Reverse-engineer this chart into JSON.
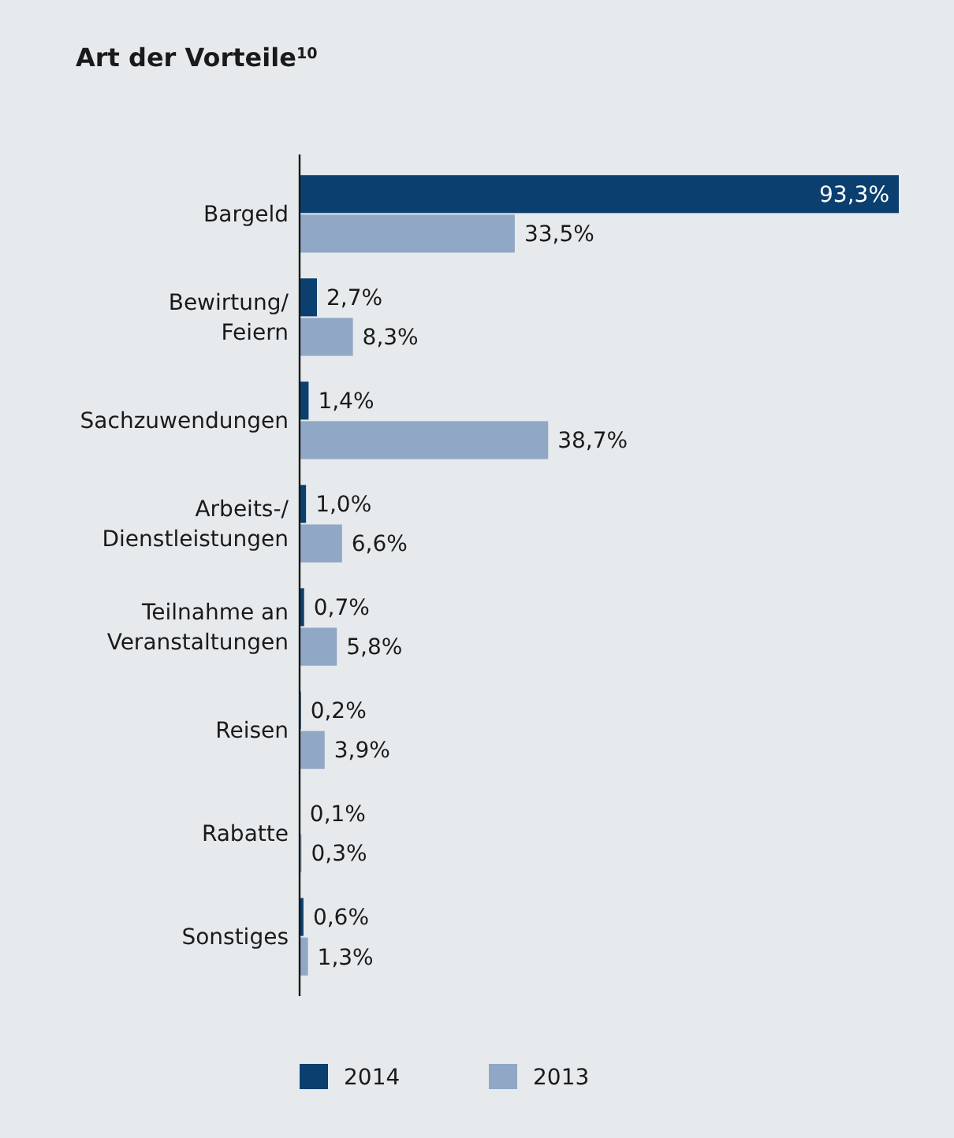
{
  "chart_data": {
    "type": "bar",
    "orientation": "horizontal",
    "title": "Art der Vorteile$^{10}$",
    "categories": [
      "Bargeld",
      "Bewirtung/\nFeiern",
      "Sachzuwendungen",
      "Arbeits-/\nDienstleistungen",
      "Teilnahme an\nVeranstaltungen",
      "Reisen",
      "Rabatte",
      "Sonstiges"
    ],
    "series": [
      {
        "name": "2014",
        "color": "#0b3f6f",
        "values": [
          93.3,
          2.7,
          1.4,
          1.0,
          0.7,
          0.2,
          0.1,
          0.6
        ],
        "value_labels": [
          "93,3%",
          "2,7%",
          "1,4%",
          "1,0%",
          "0,7%",
          "0,2%",
          "0,1%",
          "0,6%"
        ]
      },
      {
        "name": "2013",
        "color": "#90a7c6",
        "values": [
          33.5,
          8.3,
          38.7,
          6.6,
          5.8,
          3.9,
          0.3,
          1.3
        ],
        "value_labels": [
          "33,5%",
          "8,3%",
          "38,7%",
          "6,6%",
          "5,8%",
          "3,9%",
          "0,3%",
          "1,3%"
        ]
      }
    ],
    "legend": "bottom"
  }
}
